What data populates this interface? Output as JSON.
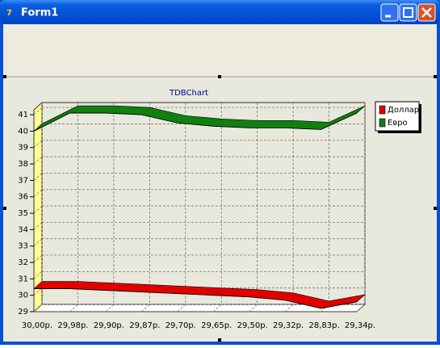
{
  "window": {
    "title": "Form1"
  },
  "chart_data": {
    "type": "line3d",
    "title": "TDBChart",
    "categories": [
      "30,00р.",
      "29,98р.",
      "29,90р.",
      "29,87р.",
      "29,70р.",
      "29,65р.",
      "29,50р.",
      "29,32р.",
      "28,83р.",
      "29,34р."
    ],
    "series": [
      {
        "name": "Доллар",
        "color": "#e00000",
        "values": [
          30.4,
          30.4,
          30.3,
          30.2,
          30.1,
          30.0,
          29.9,
          29.7,
          29.2,
          29.6
        ]
      },
      {
        "name": "Евро",
        "color": "#108010",
        "values": [
          40.0,
          41.1,
          41.1,
          41.0,
          40.5,
          40.3,
          40.2,
          40.2,
          40.1,
          41.1
        ]
      }
    ],
    "ylim": [
      29,
      41.3
    ],
    "yticks": [
      29,
      30,
      31,
      32,
      33,
      34,
      35,
      36,
      37,
      38,
      39,
      40,
      41
    ],
    "grid": true,
    "legend": "right"
  }
}
